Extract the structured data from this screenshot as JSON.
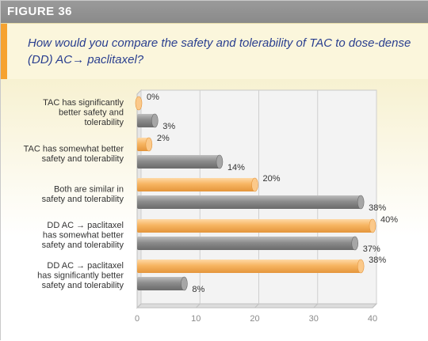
{
  "figure_label": "FIGURE 36",
  "title": "How would you compare the safety and tolerability of TAC to dose-dense (DD) AC→ paclitaxel?",
  "colors": {
    "accent": "#f6a230",
    "series_a": "#f7b562",
    "series_b": "#8c8c8c"
  },
  "chart_data": {
    "type": "bar",
    "orientation": "horizontal",
    "categories": [
      [
        "TAC has significantly",
        "better safety and",
        "tolerability"
      ],
      [
        "TAC has somewhat better",
        "safety and tolerability"
      ],
      [
        "Both are similar in",
        "safety and tolerability"
      ],
      [
        "DD AC → paclitaxel",
        "has somewhat better",
        "safety and tolerability"
      ],
      [
        "DD AC → paclitaxel",
        "has significantly better",
        "safety and tolerability"
      ]
    ],
    "series": [
      {
        "values": [
          0,
          2,
          20,
          40,
          38
        ],
        "color": "#f7b562"
      },
      {
        "values": [
          3,
          14,
          38,
          37,
          8
        ],
        "color": "#8c8c8c"
      }
    ],
    "value_suffix": "%",
    "xlim": [
      0,
      40
    ],
    "xticks": [
      0,
      10,
      20,
      30,
      40
    ],
    "grid": true
  }
}
